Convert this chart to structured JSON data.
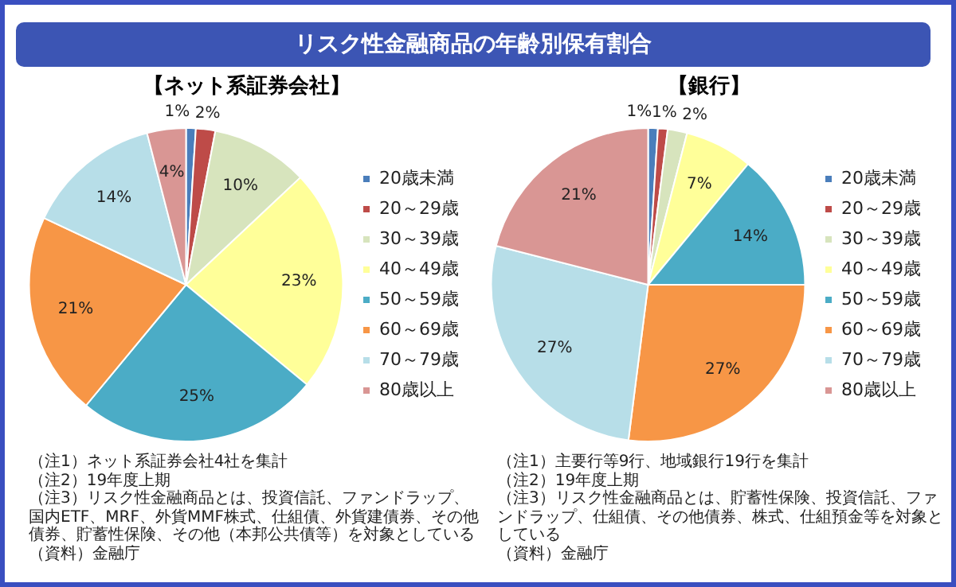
{
  "chart_data": [
    {
      "type": "pie",
      "title": "リスク性金融商品の年齢別保有割合",
      "subtitle": "【ネット系証券会社】",
      "categories": [
        "20歳未満",
        "20～29歳",
        "30～39歳",
        "40～49歳",
        "50～59歳",
        "60～69歳",
        "70～79歳",
        "80歳以上"
      ],
      "values": [
        1,
        2,
        10,
        23,
        25,
        21,
        14,
        4
      ],
      "value_labels": [
        "1%",
        "2%",
        "10%",
        "23%",
        "25%",
        "21%",
        "14%",
        "4%"
      ],
      "colors": [
        "#4a7ebb",
        "#be4b48",
        "#d7e4bd",
        "#ffff99",
        "#4bacc6",
        "#f79646",
        "#b7dee8",
        "#d99694"
      ],
      "legend": "right",
      "annotations": [
        "（注1）ネット系証券会社4社を集計",
        "（注2）19年度上期",
        "（注3）リスク性金融商品とは、投資信託、ファンドラップ、国内ETF、MRF、外貨MMF株式、仕組債、外貨建債券、その他債券、貯蓄性保険、その他（本邦公共債等）を対象としている",
        "（資料）金融庁"
      ]
    },
    {
      "type": "pie",
      "title": "【銀行】",
      "categories": [
        "20歳未満",
        "20～29歳",
        "30～39歳",
        "40～49歳",
        "50～59歳",
        "60～69歳",
        "70～79歳",
        "80歳以上"
      ],
      "values": [
        1,
        1,
        2,
        7,
        14,
        27,
        27,
        21
      ],
      "value_labels": [
        "1%",
        "1%",
        "2%",
        "7%",
        "14%",
        "27%",
        "27%",
        "21%"
      ],
      "colors": [
        "#4a7ebb",
        "#be4b48",
        "#d7e4bd",
        "#ffff99",
        "#4bacc6",
        "#f79646",
        "#b7dee8",
        "#d99694"
      ],
      "legend": "right",
      "annotations": [
        "（注1）主要行等9行、地域銀行19行を集計",
        "（注2）19年度上期",
        "（注3）リスク性金融商品とは、貯蓄性保険、投資信託、ファンドラップ、仕組債、その他債券、株式、仕組預金等を対象としている",
        "（資料）金融庁"
      ]
    }
  ]
}
